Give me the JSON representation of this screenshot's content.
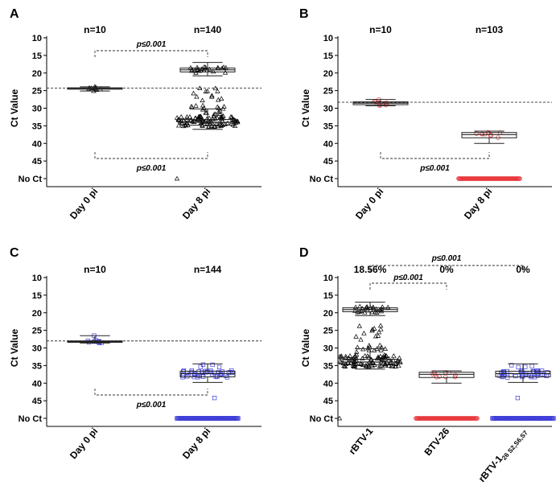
{
  "chart_data": [
    {
      "type": "scatter",
      "panel_label": "A",
      "ylabel": "Ct Value",
      "y_ticks": [
        "10",
        "15",
        "20",
        "25",
        "30",
        "35",
        "40",
        "45",
        "No Ct"
      ],
      "ylim": [
        10,
        50
      ],
      "reversed_y": true,
      "reference_line": 24.3,
      "categories": [
        "Day 0 pi",
        "Day 8 pi"
      ],
      "counts": [
        "n=10",
        "n=140"
      ],
      "marker": "triangle",
      "color": "#000000",
      "series": [
        {
          "name": "Day 0 pi",
          "values": [
            23.9,
            24.1,
            24.2,
            24.3,
            24.3,
            24.4,
            24.5,
            24.6,
            24.8,
            25.1
          ]
        },
        {
          "name": "Day 8 pi",
          "groups": [
            {
              "center": 19.1,
              "spread": 0.9,
              "count": 24
            },
            {
              "center": 25.5,
              "spread": 2.5,
              "count": 12
            },
            {
              "center": 31.0,
              "spread": 1.8,
              "count": 18
            },
            {
              "center": 33.8,
              "spread": 1.6,
              "count": 85
            },
            {
              "center": 50.0,
              "spread": 0,
              "count": 1
            }
          ],
          "boxes": [
            {
              "q1": 18.6,
              "median": 19.1,
              "q3": 19.7,
              "wlo": 17.0,
              "whi": 20.8
            },
            {
              "q1": 33.2,
              "median": 34.0,
              "q3": 34.8,
              "wlo": 30.2,
              "whi": 36.0
            }
          ]
        }
      ],
      "significance": [
        {
          "text": "p≤0.001",
          "position": "top"
        },
        {
          "text": "p≤0.001",
          "position": "bottom"
        }
      ]
    },
    {
      "type": "scatter",
      "panel_label": "B",
      "ylabel": "Ct Value",
      "y_ticks": [
        "10",
        "15",
        "20",
        "25",
        "30",
        "35",
        "40",
        "45",
        "No Ct"
      ],
      "ylim": [
        10,
        50
      ],
      "reversed_y": true,
      "reference_line": 28.3,
      "categories": [
        "Day 0 pi",
        "Day 8 pi"
      ],
      "counts": [
        "n=10",
        "n=103"
      ],
      "marker": "circle",
      "color": "#e8353a",
      "series": [
        {
          "name": "Day 0 pi",
          "values": [
            27.5,
            28.0,
            28.2,
            28.4,
            28.5,
            28.6,
            28.8,
            29.0,
            29.1,
            29.3
          ]
        },
        {
          "name": "Day 8 pi",
          "groups": [
            {
              "center": 37.6,
              "spread": 0.8,
              "count": 10
            },
            {
              "center": 50.0,
              "spread": 0,
              "count": 93
            }
          ],
          "boxes": [
            {
              "q1": 36.9,
              "median": 37.5,
              "q3": 38.4,
              "wlo": 36.5,
              "whi": 40.0
            }
          ]
        }
      ],
      "significance": [
        {
          "text": "p≤0.001",
          "position": "bottom"
        }
      ]
    },
    {
      "type": "scatter",
      "panel_label": "C",
      "ylabel": "Ct Value",
      "y_ticks": [
        "10",
        "15",
        "20",
        "25",
        "30",
        "35",
        "40",
        "45",
        "No Ct"
      ],
      "ylim": [
        10,
        50
      ],
      "reversed_y": true,
      "reference_line": 28.0,
      "categories": [
        "Day 0 pi",
        "Day 8 pi"
      ],
      "counts": [
        "n=10",
        "n=144"
      ],
      "marker": "square",
      "color": "#3a3ad6",
      "series": [
        {
          "name": "Day 0 pi",
          "values": [
            26.5,
            27.8,
            28.0,
            28.1,
            28.2,
            28.2,
            28.3,
            28.4,
            28.5,
            28.6
          ]
        },
        {
          "name": "Day 8 pi",
          "groups": [
            {
              "center": 37.4,
              "spread": 1.0,
              "count": 42
            },
            {
              "center": 35.0,
              "spread": 0.7,
              "count": 4
            },
            {
              "center": 44.2,
              "spread": 0,
              "count": 1
            },
            {
              "center": 50.0,
              "spread": 0,
              "count": 97
            }
          ],
          "boxes": [
            {
              "q1": 36.6,
              "median": 37.3,
              "q3": 38.2,
              "wlo": 34.5,
              "whi": 39.8
            }
          ]
        }
      ],
      "significance": [
        {
          "text": "p≤0.001",
          "position": "bottom"
        }
      ]
    },
    {
      "type": "scatter",
      "panel_label": "D",
      "ylabel": "Ct Value",
      "y_ticks": [
        "10",
        "15",
        "20",
        "25",
        "30",
        "35",
        "40",
        "45",
        "No Ct"
      ],
      "ylim": [
        10,
        50
      ],
      "reversed_y": true,
      "categories": [
        "rBTV-1",
        "BTV-26",
        "rBTV-1"
      ],
      "category_subscript": [
        "",
        "",
        "26 S2,S6,S7"
      ],
      "counts": [
        "18.56%",
        "0%",
        "0%"
      ],
      "series": [
        {
          "name": "rBTV-1",
          "marker": "triangle",
          "color": "#000000",
          "groups": [
            {
              "center": 19.1,
              "spread": 0.9,
              "count": 24
            },
            {
              "center": 25.5,
              "spread": 2.5,
              "count": 12
            },
            {
              "center": 31.0,
              "spread": 1.8,
              "count": 18
            },
            {
              "center": 33.8,
              "spread": 1.6,
              "count": 85
            },
            {
              "center": 50.0,
              "spread": 0,
              "count": 1
            }
          ],
          "boxes": [
            {
              "q1": 18.6,
              "median": 19.1,
              "q3": 19.7,
              "wlo": 17.0,
              "whi": 20.8
            },
            {
              "q1": 33.2,
              "median": 34.0,
              "q3": 34.8,
              "wlo": 30.2,
              "whi": 36.0
            }
          ]
        },
        {
          "name": "BTV-26",
          "marker": "circle",
          "color": "#e8353a",
          "groups": [
            {
              "center": 37.6,
              "spread": 0.8,
              "count": 10
            },
            {
              "center": 50.0,
              "spread": 0,
              "count": 93
            }
          ],
          "boxes": [
            {
              "q1": 36.9,
              "median": 37.5,
              "q3": 38.4,
              "wlo": 36.5,
              "whi": 40.0
            }
          ]
        },
        {
          "name": "rBTV-1 26 S2,S6,S7",
          "marker": "square",
          "color": "#3a3ad6",
          "groups": [
            {
              "center": 37.4,
              "spread": 1.0,
              "count": 42
            },
            {
              "center": 35.0,
              "spread": 0.7,
              "count": 4
            },
            {
              "center": 44.2,
              "spread": 0,
              "count": 1
            },
            {
              "center": 50.0,
              "spread": 0,
              "count": 97
            }
          ],
          "boxes": [
            {
              "q1": 36.6,
              "median": 37.3,
              "q3": 38.2,
              "wlo": 34.5,
              "whi": 39.8
            }
          ]
        }
      ],
      "significance": [
        {
          "text": "p≤0.001",
          "position": "top-outer"
        },
        {
          "text": "p≤0.001",
          "position": "top-inner"
        }
      ]
    }
  ]
}
